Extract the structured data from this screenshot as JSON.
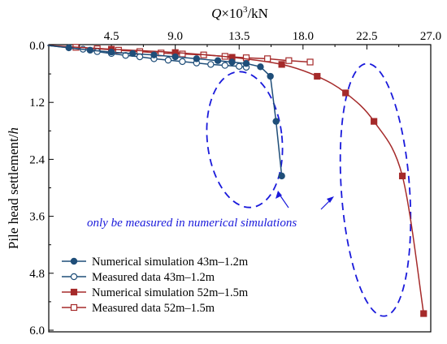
{
  "chart_data": {
    "type": "line",
    "xlabel_var": "Q",
    "xlabel_rest": "×10",
    "xlabel_exp": "3",
    "xlabel_unit": "/kN",
    "ylabel_main": "Pile head settlement/",
    "ylabel_var": "h",
    "x_axis_position": "top",
    "y_axis_inverted": true,
    "xlim": [
      0,
      27.0
    ],
    "ylim": [
      0,
      6.0
    ],
    "x_ticks": [
      "4.5",
      "9.0",
      "13.5",
      "18.0",
      "22.5",
      "27.0"
    ],
    "x_tick_values": [
      4.5,
      9.0,
      13.5,
      18.0,
      22.5,
      27.0
    ],
    "y_ticks": [
      "0.0",
      "1.2",
      "2.4",
      "3.6",
      "4.8",
      "6.0"
    ],
    "y_tick_values": [
      0,
      1.2,
      2.4,
      3.6,
      4.8,
      6.0
    ],
    "grid": false,
    "legend_position": "bottom-left",
    "series": [
      {
        "name": "Numerical simulation 43m–1.2m",
        "color": "#1f4e79",
        "marker": "circle",
        "filled": true,
        "x": [
          0,
          1.5,
          3.0,
          4.5,
          6.0,
          7.5,
          9.0,
          10.5,
          12.0,
          13.0,
          14.0,
          15.0,
          15.7,
          16.1,
          16.5
        ],
        "y": [
          0,
          0.05,
          0.1,
          0.14,
          0.17,
          0.2,
          0.24,
          0.28,
          0.32,
          0.35,
          0.38,
          0.45,
          0.65,
          1.6,
          2.75
        ]
      },
      {
        "name": "Measured data 43m–1.2m",
        "color": "#1f4e79",
        "marker": "circle",
        "filled": false,
        "x": [
          0,
          2.5,
          3.5,
          4.5,
          5.5,
          6.5,
          7.5,
          8.5,
          9.5,
          10.5,
          11.5,
          12.5,
          13.5,
          14.0
        ],
        "y": [
          0,
          0.08,
          0.13,
          0.17,
          0.21,
          0.24,
          0.28,
          0.31,
          0.34,
          0.37,
          0.4,
          0.42,
          0.44,
          0.46
        ]
      },
      {
        "name": "Numerical simulation 52m–1.5m",
        "color": "#a52a2a",
        "marker": "square",
        "filled": true,
        "x": [
          0,
          4.5,
          9.0,
          13.0,
          16.5,
          19.0,
          21.0,
          23.0,
          25.0,
          26.5
        ],
        "y": [
          0,
          0.08,
          0.15,
          0.25,
          0.4,
          0.65,
          1.0,
          1.6,
          2.75,
          5.65
        ]
      },
      {
        "name": "Measured data 52m–1.5m",
        "color": "#a52a2a",
        "marker": "square",
        "filled": false,
        "x": [
          0,
          2.0,
          3.5,
          5.0,
          6.5,
          8.0,
          9.5,
          11.0,
          12.5,
          14.0,
          15.5,
          17.0,
          18.5
        ],
        "y": [
          0,
          0.04,
          0.07,
          0.1,
          0.13,
          0.16,
          0.18,
          0.2,
          0.23,
          0.26,
          0.28,
          0.32,
          0.35
        ]
      }
    ],
    "annotation": "only be measured in numerical simulations"
  }
}
